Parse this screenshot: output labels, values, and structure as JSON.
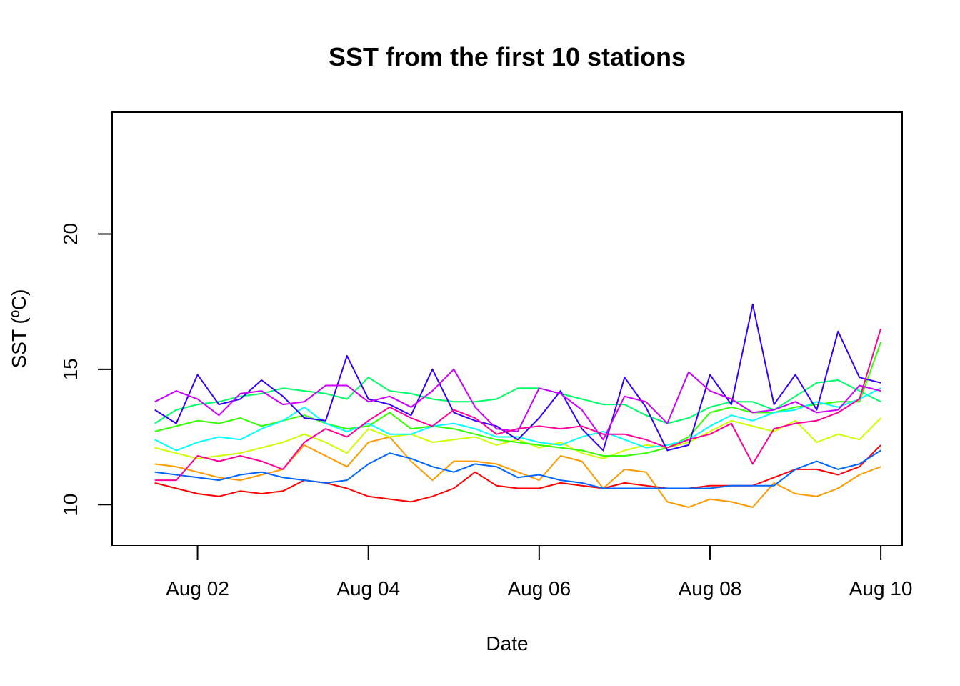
{
  "chart_data": {
    "type": "line",
    "title": "SST from the first 10 stations",
    "xlabel": "Date",
    "ylabel": "SST (ºC)",
    "x_ticks": [
      "Aug 02",
      "Aug 04",
      "Aug 06",
      "Aug 08",
      "Aug 10"
    ],
    "y_ticks": [
      10,
      15,
      20
    ],
    "xlim": [
      "2021-08-01T00:00",
      "2021-08-10T06:00"
    ],
    "ylim": [
      8.5,
      24.5
    ],
    "grid": false,
    "legend": "none",
    "x": [
      "2021-08-01T12:00",
      "2021-08-01T18:00",
      "2021-08-02T00:00",
      "2021-08-02T06:00",
      "2021-08-02T12:00",
      "2021-08-02T18:00",
      "2021-08-03T00:00",
      "2021-08-03T06:00",
      "2021-08-03T12:00",
      "2021-08-03T18:00",
      "2021-08-04T00:00",
      "2021-08-04T06:00",
      "2021-08-04T12:00",
      "2021-08-04T18:00",
      "2021-08-05T00:00",
      "2021-08-05T06:00",
      "2021-08-05T12:00",
      "2021-08-05T18:00",
      "2021-08-06T00:00",
      "2021-08-06T06:00",
      "2021-08-06T12:00",
      "2021-08-06T18:00",
      "2021-08-07T00:00",
      "2021-08-07T06:00",
      "2021-08-07T12:00",
      "2021-08-07T18:00",
      "2021-08-08T00:00",
      "2021-08-08T06:00",
      "2021-08-08T12:00",
      "2021-08-08T18:00",
      "2021-08-09T00:00",
      "2021-08-09T06:00",
      "2021-08-09T12:00",
      "2021-08-09T18:00",
      "2021-08-10T00:00"
    ],
    "series": [
      {
        "color": "#FF0000",
        "values": [
          10.8,
          10.6,
          10.4,
          10.3,
          10.5,
          10.4,
          10.5,
          10.9,
          10.8,
          10.6,
          10.3,
          10.2,
          10.1,
          10.3,
          10.6,
          11.2,
          10.7,
          10.6,
          10.6,
          10.8,
          10.7,
          10.6,
          10.8,
          10.7,
          10.6,
          10.6,
          10.7,
          10.7,
          10.7,
          11.0,
          11.3,
          11.3,
          11.1,
          11.4,
          12.2
        ]
      },
      {
        "color": "#FF9900",
        "values": [
          11.5,
          11.4,
          11.2,
          11.0,
          10.9,
          11.1,
          11.3,
          12.2,
          11.8,
          11.4,
          12.3,
          12.5,
          11.6,
          10.9,
          11.6,
          11.6,
          11.5,
          11.2,
          10.9,
          11.8,
          11.6,
          10.6,
          11.3,
          11.2,
          10.1,
          9.9,
          10.2,
          10.1,
          9.9,
          10.8,
          10.4,
          10.3,
          10.6,
          11.1,
          11.4
        ]
      },
      {
        "color": "#CCFF00",
        "values": [
          12.1,
          11.9,
          11.7,
          11.8,
          11.9,
          12.1,
          12.3,
          12.6,
          12.3,
          11.9,
          12.8,
          12.5,
          12.6,
          12.3,
          12.4,
          12.5,
          12.2,
          12.4,
          12.1,
          12.3,
          11.9,
          11.7,
          12.0,
          12.2,
          12.1,
          12.3,
          12.7,
          13.1,
          12.9,
          12.7,
          13.1,
          12.3,
          12.6,
          12.4,
          13.2
        ]
      },
      {
        "color": "#33FF00",
        "values": [
          12.7,
          12.9,
          13.1,
          13.0,
          13.2,
          12.9,
          13.1,
          13.3,
          13.0,
          12.8,
          12.9,
          13.4,
          12.8,
          12.9,
          12.8,
          12.6,
          12.4,
          12.3,
          12.2,
          12.1,
          12.0,
          11.8,
          11.8,
          11.9,
          12.1,
          12.5,
          13.4,
          13.6,
          13.4,
          13.4,
          13.6,
          13.7,
          13.8,
          13.8,
          16.0
        ]
      },
      {
        "color": "#00FF66",
        "values": [
          13.0,
          13.5,
          13.7,
          13.8,
          14.0,
          14.1,
          14.3,
          14.2,
          14.1,
          13.9,
          14.7,
          14.2,
          14.1,
          13.9,
          13.8,
          13.8,
          13.9,
          14.3,
          14.3,
          14.1,
          13.9,
          13.7,
          13.7,
          13.3,
          13.0,
          13.2,
          13.6,
          13.8,
          13.8,
          13.5,
          14.0,
          14.5,
          14.6,
          14.2,
          13.8
        ]
      },
      {
        "color": "#00FFFF",
        "values": [
          12.4,
          12.0,
          12.3,
          12.5,
          12.4,
          12.8,
          13.1,
          13.6,
          13.0,
          12.7,
          13.0,
          12.6,
          12.6,
          12.9,
          13.0,
          12.8,
          12.5,
          12.5,
          12.3,
          12.2,
          12.5,
          12.7,
          12.4,
          12.1,
          12.2,
          12.4,
          12.9,
          13.3,
          13.1,
          13.4,
          13.5,
          13.8,
          13.6,
          13.9,
          14.3
        ]
      },
      {
        "color": "#0066FF",
        "values": [
          11.2,
          11.1,
          11.0,
          10.9,
          11.1,
          11.2,
          11.0,
          10.9,
          10.8,
          10.9,
          11.5,
          11.9,
          11.7,
          11.4,
          11.2,
          11.5,
          11.4,
          11.0,
          11.1,
          10.9,
          10.8,
          10.6,
          10.6,
          10.6,
          10.6,
          10.6,
          10.6,
          10.7,
          10.7,
          10.7,
          11.3,
          11.6,
          11.3,
          11.5,
          12.0
        ]
      },
      {
        "color": "#3300FF",
        "values": [
          13.5,
          13.0,
          14.8,
          13.7,
          13.9,
          14.6,
          14.0,
          13.2,
          13.1,
          15.5,
          13.9,
          13.7,
          13.3,
          15.0,
          13.4,
          13.1,
          12.9,
          12.4,
          13.2,
          14.2,
          12.8,
          12.0,
          14.7,
          13.6,
          12.0,
          12.2,
          14.8,
          13.7,
          17.4,
          13.7,
          14.8,
          13.5,
          16.4,
          14.7,
          14.5
        ]
      },
      {
        "color": "#CC00FF",
        "values": [
          13.8,
          14.2,
          13.9,
          13.3,
          14.1,
          14.2,
          13.7,
          13.8,
          14.4,
          14.4,
          13.8,
          14.0,
          13.6,
          14.2,
          15.0,
          13.6,
          12.8,
          12.7,
          14.3,
          14.1,
          13.5,
          12.4,
          14.0,
          13.8,
          13.0,
          14.9,
          14.2,
          13.9,
          13.4,
          13.5,
          13.8,
          13.4,
          13.5,
          14.4,
          14.2
        ]
      },
      {
        "color": "#FF0099",
        "values": [
          10.9,
          10.9,
          11.8,
          11.6,
          11.8,
          11.6,
          11.3,
          12.3,
          12.8,
          12.5,
          13.1,
          13.6,
          13.2,
          12.9,
          13.5,
          13.2,
          12.6,
          12.8,
          12.9,
          12.8,
          12.9,
          12.6,
          12.6,
          12.4,
          12.1,
          12.4,
          12.6,
          13.0,
          11.5,
          12.8,
          13.0,
          13.1,
          13.4,
          13.9,
          16.5
        ]
      }
    ]
  }
}
